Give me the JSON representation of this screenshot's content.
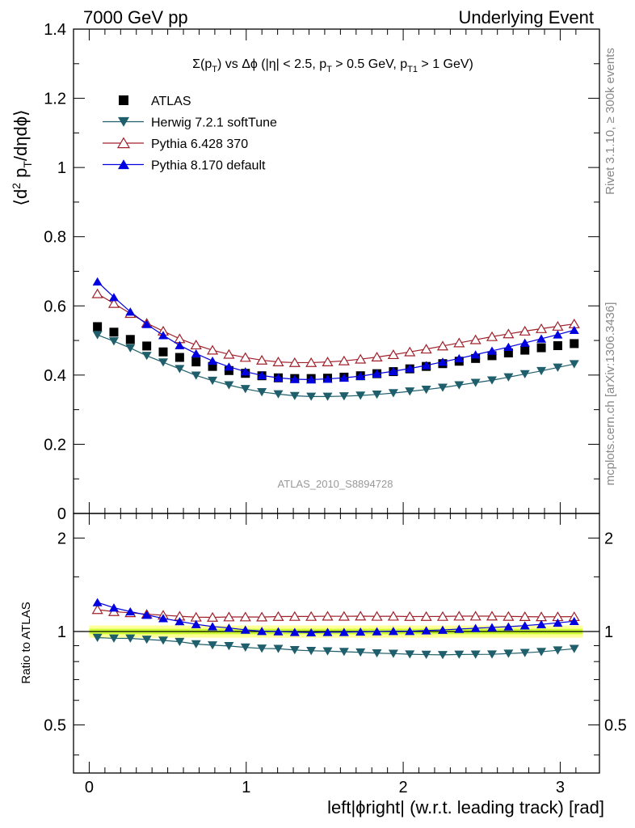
{
  "header": {
    "left": "7000 GeV pp",
    "right": "Underlying Event"
  },
  "main_panel": {
    "title": "Σ(p",
    "title_parts": [
      "Σ(p",
      "T",
      ") vs Δϕ (|η| < 2.5, p",
      "T",
      " > 0.5 GeV, p",
      "T1",
      " > 1 GeV)"
    ],
    "ylabel_parts": [
      "⟨d",
      "2",
      " p",
      "T",
      "/dηdϕ⟩"
    ],
    "analysis_label": "ATLAS_2010_S8894728",
    "yticks": [
      "0",
      "0.2",
      "0.4",
      "0.6",
      "0.8",
      "1",
      "1.2",
      "1.4"
    ]
  },
  "ratio_panel": {
    "ylabel": "Ratio to ATLAS",
    "yticks": [
      "0.5",
      "1",
      "2"
    ]
  },
  "xaxis": {
    "label": "left|ϕright| (w.r.t. leading track) [rad]",
    "ticks": [
      "0",
      "1",
      "2",
      "3"
    ]
  },
  "side_labels": {
    "rivet": "Rivet 3.1.10, ≥ 300k events",
    "mcplots": "mcplots.cern.ch [arXiv:1306.3436]"
  },
  "legend": [
    {
      "label": "ATLAS",
      "marker": "square",
      "color": "#000000"
    },
    {
      "label": "Herwig 7.2.1 softTune",
      "marker": "triangle-down",
      "color": "#1f5f6b"
    },
    {
      "label": "Pythia 6.428 370",
      "marker": "triangle-up-open",
      "color": "#a0202a"
    },
    {
      "label": "Pythia 8.170 default",
      "marker": "triangle-up",
      "color": "#0000e0"
    }
  ],
  "chart_data": {
    "type": "scatter",
    "xlim": [
      -0.1,
      3.25
    ],
    "ylim": [
      0,
      1.4
    ],
    "ratio_ylim": [
      0.35,
      2.4
    ],
    "ratio_scale": "log",
    "x": [
      0.0524,
      0.1571,
      0.2618,
      0.3665,
      0.4712,
      0.576,
      0.6807,
      0.7854,
      0.8901,
      0.9948,
      1.0996,
      1.2043,
      1.309,
      1.4137,
      1.5184,
      1.6232,
      1.7279,
      1.8326,
      1.9373,
      2.042,
      2.1468,
      2.2515,
      2.3562,
      2.4609,
      2.5656,
      2.6704,
      2.7751,
      2.8798,
      2.9845,
      3.0892
    ],
    "series": [
      {
        "name": "ATLAS",
        "values": [
          0.54,
          0.524,
          0.503,
          0.484,
          0.467,
          0.451,
          0.438,
          0.425,
          0.413,
          0.405,
          0.398,
          0.392,
          0.39,
          0.39,
          0.391,
          0.394,
          0.398,
          0.404,
          0.41,
          0.418,
          0.425,
          0.433,
          0.44,
          0.448,
          0.456,
          0.464,
          0.472,
          0.479,
          0.485,
          0.491
        ]
      },
      {
        "name": "Herwig 7.2.1 softTune",
        "values": [
          0.516,
          0.498,
          0.478,
          0.456,
          0.437,
          0.418,
          0.399,
          0.384,
          0.371,
          0.36,
          0.351,
          0.345,
          0.34,
          0.338,
          0.338,
          0.339,
          0.341,
          0.344,
          0.348,
          0.353,
          0.358,
          0.364,
          0.371,
          0.378,
          0.385,
          0.394,
          0.403,
          0.412,
          0.422,
          0.432
        ]
      },
      {
        "name": "Pythia 6.428 370",
        "values": [
          0.635,
          0.607,
          0.578,
          0.55,
          0.527,
          0.505,
          0.487,
          0.472,
          0.46,
          0.451,
          0.443,
          0.438,
          0.436,
          0.436,
          0.438,
          0.441,
          0.446,
          0.452,
          0.459,
          0.467,
          0.475,
          0.484,
          0.493,
          0.502,
          0.511,
          0.519,
          0.527,
          0.534,
          0.541,
          0.548
        ]
      },
      {
        "name": "Pythia 8.170 default",
        "values": [
          0.67,
          0.625,
          0.583,
          0.547,
          0.515,
          0.486,
          0.462,
          0.441,
          0.424,
          0.41,
          0.399,
          0.392,
          0.388,
          0.387,
          0.389,
          0.392,
          0.397,
          0.404,
          0.411,
          0.419,
          0.428,
          0.438,
          0.448,
          0.459,
          0.47,
          0.481,
          0.493,
          0.505,
          0.517,
          0.53
        ]
      }
    ],
    "ratio_band": {
      "inner": 0.02,
      "outer": 0.045,
      "inner_color": "#ccff33",
      "outer_color": "#ffff99"
    }
  }
}
